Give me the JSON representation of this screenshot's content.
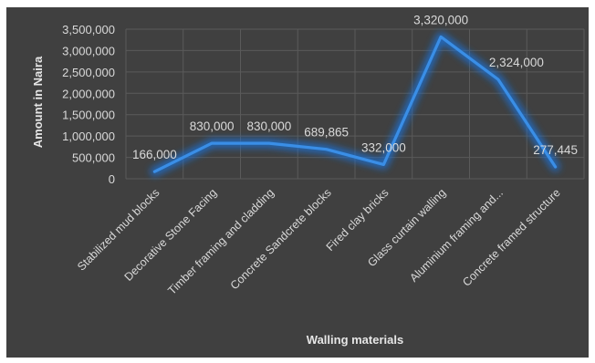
{
  "chart_data": {
    "type": "line",
    "title": "",
    "xlabel": "Walling materials",
    "ylabel": "Amount in Naira",
    "categories": [
      "Stabilized mud blocks",
      "Decorative Stone Facing",
      "Timber framing and cladding",
      "Concrete Sandcrete blocks",
      "Fired clay bricks",
      "Glass curtain walling",
      "Aluminium framing and...",
      "Concrete framed structure"
    ],
    "values": [
      166000,
      830000,
      830000,
      689865,
      332000,
      3320000,
      2324000,
      277445
    ],
    "data_labels": [
      "166,000",
      "830,000",
      "830,000",
      "689,865",
      "332,000",
      "3,320,000",
      "2,324,000",
      "277,445"
    ],
    "y_ticks": [
      0,
      500000,
      1000000,
      1500000,
      2000000,
      2500000,
      3000000,
      3500000
    ],
    "y_tick_labels": [
      "0",
      "500,000",
      "1,000,000",
      "1,500,000",
      "2,000,000",
      "2,500,000",
      "3,000,000",
      "3,500,000"
    ],
    "ylim": [
      0,
      3500000
    ],
    "grid": true,
    "legend": "none",
    "colors": {
      "line": "#3a8ee6",
      "glow": "#1e6fd0",
      "background": "#404040",
      "grid": "#5a5a5a",
      "text": "#d9d9d9"
    }
  }
}
